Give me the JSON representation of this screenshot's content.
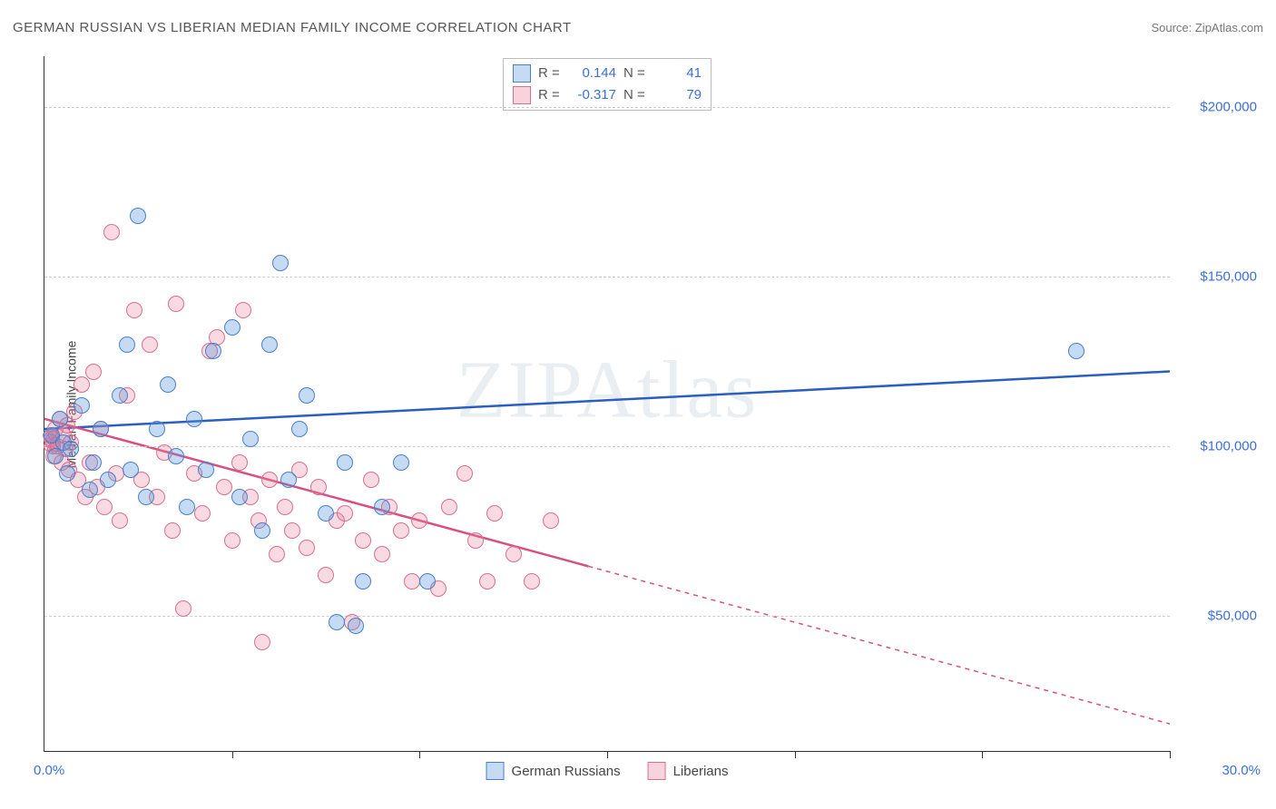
{
  "title": "GERMAN RUSSIAN VS LIBERIAN MEDIAN FAMILY INCOME CORRELATION CHART",
  "source_prefix": "Source: ",
  "source_name": "ZipAtlas.com",
  "watermark": "ZIPAtlas",
  "ylabel": "Median Family Income",
  "chart": {
    "type": "scatter",
    "xlim": [
      0,
      30
    ],
    "ylim": [
      10000,
      215000
    ],
    "x_tick_step": 5,
    "y_ticks": [
      50000,
      100000,
      150000,
      200000
    ],
    "y_tick_labels": [
      "$50,000",
      "$100,000",
      "$150,000",
      "$200,000"
    ],
    "x_min_label": "0.0%",
    "x_max_label": "30.0%",
    "grid_color": "#cccccc",
    "axis_color": "#333333",
    "background_color": "#ffffff",
    "series": {
      "blue": {
        "name": "German Russians",
        "color_fill": "rgba(90,150,220,0.35)",
        "color_stroke": "#4a80c8",
        "line_color": "#2a5fc0",
        "R": "0.144",
        "N": "41",
        "trend": {
          "x1": 0,
          "y1": 105000,
          "x2": 30,
          "y2": 122000,
          "dashed_start": null
        },
        "points": [
          [
            0.2,
            103000
          ],
          [
            0.3,
            97000
          ],
          [
            0.4,
            108000
          ],
          [
            0.5,
            101000
          ],
          [
            0.6,
            92000
          ],
          [
            0.7,
            99000
          ],
          [
            1.0,
            112000
          ],
          [
            1.2,
            87000
          ],
          [
            1.3,
            95000
          ],
          [
            1.5,
            105000
          ],
          [
            1.7,
            90000
          ],
          [
            2.0,
            115000
          ],
          [
            2.2,
            130000
          ],
          [
            2.3,
            93000
          ],
          [
            2.5,
            168000
          ],
          [
            2.7,
            85000
          ],
          [
            3.0,
            105000
          ],
          [
            3.3,
            118000
          ],
          [
            3.5,
            97000
          ],
          [
            3.8,
            82000
          ],
          [
            4.0,
            108000
          ],
          [
            4.3,
            93000
          ],
          [
            4.5,
            128000
          ],
          [
            5.0,
            135000
          ],
          [
            5.2,
            85000
          ],
          [
            5.5,
            102000
          ],
          [
            5.8,
            75000
          ],
          [
            6.0,
            130000
          ],
          [
            6.3,
            154000
          ],
          [
            6.5,
            90000
          ],
          [
            6.8,
            105000
          ],
          [
            7.0,
            115000
          ],
          [
            7.5,
            80000
          ],
          [
            7.8,
            48000
          ],
          [
            8.0,
            95000
          ],
          [
            8.3,
            47000
          ],
          [
            8.5,
            60000
          ],
          [
            9.0,
            82000
          ],
          [
            9.5,
            95000
          ],
          [
            10.2,
            60000
          ],
          [
            27.5,
            128000
          ]
        ]
      },
      "pink": {
        "name": "Liberians",
        "color_fill": "rgba(235,130,160,0.3)",
        "color_stroke": "#d77090",
        "line_color": "#d85080",
        "R": "-0.317",
        "N": "79",
        "trend": {
          "x1": 0,
          "y1": 108000,
          "x2": 30,
          "y2": 18000,
          "dashed_start": 14.5
        },
        "points": [
          [
            0.2,
            102000
          ],
          [
            0.25,
            97000
          ],
          [
            0.3,
            105000
          ],
          [
            0.35,
            100000
          ],
          [
            0.4,
            108000
          ],
          [
            0.45,
            95000
          ],
          [
            0.5,
            103000
          ],
          [
            0.55,
            99000
          ],
          [
            0.6,
            106000
          ],
          [
            0.65,
            93000
          ],
          [
            0.7,
            101000
          ],
          [
            0.8,
            110000
          ],
          [
            0.9,
            90000
          ],
          [
            1.0,
            118000
          ],
          [
            1.1,
            85000
          ],
          [
            1.2,
            95000
          ],
          [
            1.3,
            122000
          ],
          [
            1.4,
            88000
          ],
          [
            1.5,
            105000
          ],
          [
            1.6,
            82000
          ],
          [
            1.8,
            163000
          ],
          [
            1.9,
            92000
          ],
          [
            2.0,
            78000
          ],
          [
            2.2,
            115000
          ],
          [
            2.4,
            140000
          ],
          [
            2.6,
            90000
          ],
          [
            2.8,
            130000
          ],
          [
            3.0,
            85000
          ],
          [
            3.2,
            98000
          ],
          [
            3.4,
            75000
          ],
          [
            3.5,
            142000
          ],
          [
            3.7,
            52000
          ],
          [
            4.0,
            92000
          ],
          [
            4.2,
            80000
          ],
          [
            4.4,
            128000
          ],
          [
            4.6,
            132000
          ],
          [
            4.8,
            88000
          ],
          [
            5.0,
            72000
          ],
          [
            5.2,
            95000
          ],
          [
            5.3,
            140000
          ],
          [
            5.5,
            85000
          ],
          [
            5.7,
            78000
          ],
          [
            5.8,
            42000
          ],
          [
            6.0,
            90000
          ],
          [
            6.2,
            68000
          ],
          [
            6.4,
            82000
          ],
          [
            6.6,
            75000
          ],
          [
            6.8,
            93000
          ],
          [
            7.0,
            70000
          ],
          [
            7.3,
            88000
          ],
          [
            7.5,
            62000
          ],
          [
            7.8,
            78000
          ],
          [
            8.0,
            80000
          ],
          [
            8.2,
            48000
          ],
          [
            8.5,
            72000
          ],
          [
            8.7,
            90000
          ],
          [
            9.0,
            68000
          ],
          [
            9.2,
            82000
          ],
          [
            9.5,
            75000
          ],
          [
            9.8,
            60000
          ],
          [
            10.0,
            78000
          ],
          [
            10.5,
            58000
          ],
          [
            10.8,
            82000
          ],
          [
            11.2,
            92000
          ],
          [
            11.5,
            72000
          ],
          [
            11.8,
            60000
          ],
          [
            12.0,
            80000
          ],
          [
            12.5,
            68000
          ],
          [
            13.0,
            60000
          ],
          [
            13.5,
            78000
          ]
        ],
        "cluster_small": [
          [
            0.1,
            103000
          ],
          [
            0.15,
            101000
          ],
          [
            0.2,
            104000
          ],
          [
            0.12,
            100000
          ],
          [
            0.18,
            102000
          ],
          [
            0.22,
            99000
          ],
          [
            0.25,
            103000
          ],
          [
            0.28,
            101000
          ],
          [
            0.3,
            100000
          ]
        ]
      }
    }
  },
  "legend_top": {
    "rows": [
      {
        "swatch": "blue",
        "R_label": "R =",
        "R": "0.144",
        "N_label": "N =",
        "N": "41"
      },
      {
        "swatch": "pink",
        "R_label": "R =",
        "R": "-0.317",
        "N_label": "N =",
        "N": "79"
      }
    ]
  },
  "legend_bottom": [
    {
      "swatch": "blue",
      "label": "German Russians"
    },
    {
      "swatch": "pink",
      "label": "Liberians"
    }
  ]
}
